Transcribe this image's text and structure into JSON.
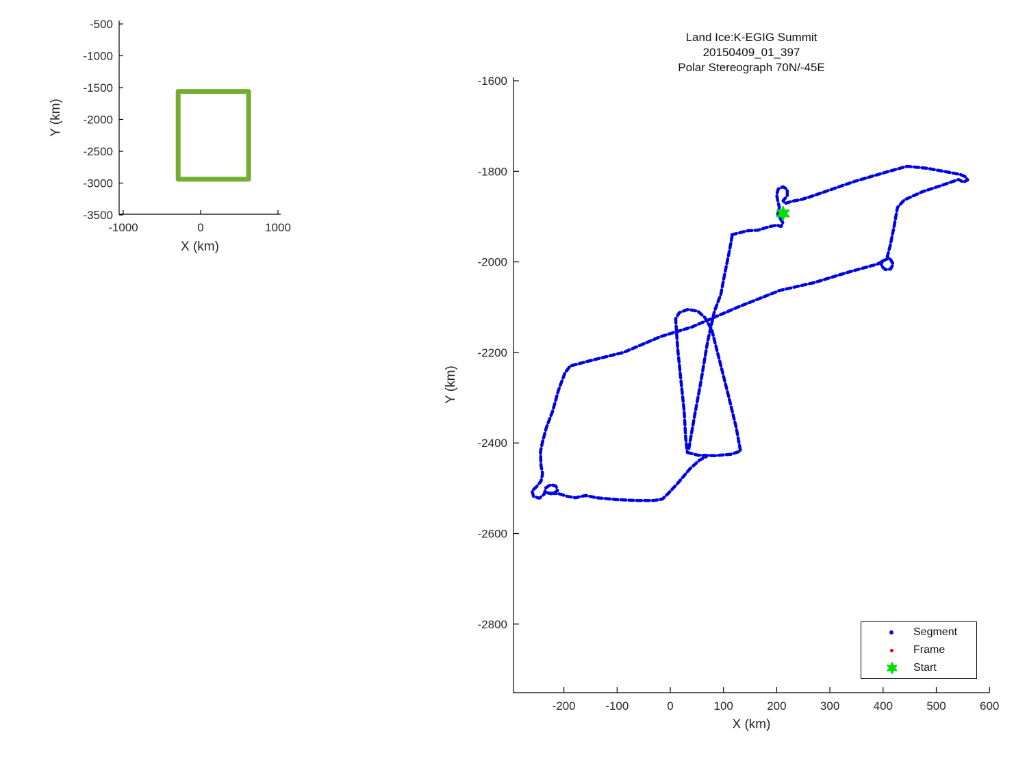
{
  "figure": {
    "colors": {
      "segment_blue": "#0000e6",
      "frame_red": "#dd0000",
      "start_green": "#00dd00",
      "overview_green": "#77AC30",
      "axis_text": "#262626",
      "axis_line": "#000000"
    }
  },
  "chart_data": [
    {
      "id": "flight_track",
      "type": "line",
      "title": {
        "line1": "Land Ice:K-EGIG Summit",
        "line2": "20150409_01_397",
        "line3": "Polar Stereograph 70N/-45E"
      },
      "xlabel": "X (km)",
      "ylabel": "Y (km)",
      "x_ticks": [
        -200,
        -100,
        0,
        100,
        200,
        300,
        400,
        500,
        600
      ],
      "y_ticks": [
        -1600,
        -1800,
        -2000,
        -2200,
        -2400,
        -2600,
        -2800
      ],
      "x_range": [
        -295,
        600
      ],
      "y_range": [
        -2952,
        -1592
      ],
      "grid": false,
      "legend": {
        "position": "lower right",
        "entries": [
          {
            "label": "Segment",
            "marker": "dot",
            "color": "#0000e6"
          },
          {
            "label": "Frame",
            "marker": "dot",
            "color": "#dd0000"
          },
          {
            "label": "Start",
            "marker": "star",
            "color": "#00dd00"
          }
        ]
      },
      "start_point": [
        212,
        -1893
      ],
      "series": [
        {
          "name": "segment-path",
          "color": "#0000e6",
          "style": "dashed",
          "stroke_width": 4.5,
          "points": [
            [
              116,
              -1940
            ],
            [
              129,
              -1936
            ],
            [
              146,
              -1931
            ],
            [
              165,
              -1930
            ],
            [
              178,
              -1925
            ],
            [
              191,
              -1921
            ],
            [
              201,
              -1919
            ],
            [
              208,
              -1922
            ],
            [
              212,
              -1914
            ],
            [
              207,
              -1905
            ],
            [
              202,
              -1895
            ],
            [
              205,
              -1880
            ],
            [
              202,
              -1865
            ],
            [
              200,
              -1852
            ],
            [
              203,
              -1839
            ],
            [
              212,
              -1834
            ],
            [
              220,
              -1840
            ],
            [
              220,
              -1854
            ],
            [
              212,
              -1865
            ],
            [
              216,
              -1871
            ],
            [
              229,
              -1866
            ],
            [
              244,
              -1863
            ],
            [
              261,
              -1857
            ],
            [
              283,
              -1848
            ],
            [
              347,
              -1822
            ],
            [
              411,
              -1800
            ],
            [
              445,
              -1789
            ],
            [
              481,
              -1793
            ],
            [
              519,
              -1801
            ],
            [
              545,
              -1807
            ],
            [
              555,
              -1812
            ],
            [
              559,
              -1819
            ],
            [
              551,
              -1824
            ],
            [
              542,
              -1818
            ],
            [
              513,
              -1830
            ],
            [
              474,
              -1845
            ],
            [
              440,
              -1863
            ],
            [
              427,
              -1880
            ],
            [
              421,
              -1920
            ],
            [
              413,
              -1966
            ],
            [
              408,
              -1988
            ],
            [
              414,
              -1995
            ],
            [
              419,
              -2005
            ],
            [
              414,
              -2016
            ],
            [
              404,
              -2017
            ],
            [
              396,
              -2008
            ],
            [
              399,
              -1998
            ],
            [
              408,
              -1993
            ],
            [
              389,
              -2005
            ],
            [
              334,
              -2023
            ],
            [
              270,
              -2046
            ],
            [
              206,
              -2063
            ],
            [
              129,
              -2099
            ],
            [
              40,
              -2144
            ],
            [
              -18,
              -2165
            ],
            [
              -88,
              -2200
            ],
            [
              -150,
              -2218
            ],
            [
              -188,
              -2230
            ],
            [
              -198,
              -2245
            ],
            [
              -210,
              -2283
            ],
            [
              -221,
              -2329
            ],
            [
              -233,
              -2366
            ],
            [
              -240,
              -2397
            ],
            [
              -244,
              -2419
            ],
            [
              -243,
              -2450
            ],
            [
              -240,
              -2468
            ],
            [
              -243,
              -2484
            ],
            [
              -251,
              -2496
            ],
            [
              -260,
              -2506
            ],
            [
              -257,
              -2518
            ],
            [
              -246,
              -2522
            ],
            [
              -237,
              -2513
            ],
            [
              -234,
              -2499
            ],
            [
              -225,
              -2492
            ],
            [
              -215,
              -2495
            ],
            [
              -212,
              -2505
            ],
            [
              -221,
              -2513
            ],
            [
              -231,
              -2510
            ],
            [
              -210,
              -2512
            ],
            [
              -193,
              -2518
            ],
            [
              -178,
              -2521
            ],
            [
              -159,
              -2516
            ],
            [
              -139,
              -2521
            ],
            [
              -101,
              -2525
            ],
            [
              -63,
              -2527
            ],
            [
              -31,
              -2527
            ],
            [
              -15,
              -2524
            ],
            [
              -5,
              -2513
            ],
            [
              14,
              -2489
            ],
            [
              37,
              -2457
            ],
            [
              55,
              -2438
            ],
            [
              68,
              -2430
            ]
          ]
        },
        {
          "name": "racetrack-loop",
          "color": "#0000e6",
          "style": "dashed",
          "stroke_width": 4.5,
          "points": [
            [
              32,
              -2421
            ],
            [
              52,
              -2427
            ],
            [
              84,
              -2428
            ],
            [
              114,
              -2425
            ],
            [
              132,
              -2418
            ],
            [
              124,
              -2366
            ],
            [
              109,
              -2294
            ],
            [
              93,
              -2220
            ],
            [
              78,
              -2150
            ],
            [
              65,
              -2123
            ],
            [
              52,
              -2109
            ],
            [
              33,
              -2105
            ],
            [
              17,
              -2112
            ],
            [
              10,
              -2126
            ],
            [
              14,
              -2193
            ],
            [
              20,
              -2261
            ],
            [
              26,
              -2329
            ],
            [
              29,
              -2389
            ],
            [
              32,
              -2421
            ]
          ]
        },
        {
          "name": "transit-line",
          "color": "#0000e6",
          "style": "dashed",
          "stroke_width": 4.5,
          "points": [
            [
              35,
              -2412
            ],
            [
              45,
              -2344
            ],
            [
              58,
              -2261
            ],
            [
              70,
              -2177
            ],
            [
              83,
              -2109
            ],
            [
              95,
              -2072
            ],
            [
              101,
              -2034
            ],
            [
              109,
              -1988
            ],
            [
              114,
              -1958
            ],
            [
              116,
              -1943
            ]
          ]
        }
      ]
    },
    {
      "id": "coverage_overview",
      "type": "line",
      "xlabel": "X (km)",
      "ylabel": "Y (km)",
      "x_ticks": [
        -1000,
        0,
        1000
      ],
      "y_ticks": [
        -500,
        -1000,
        -1500,
        -2000,
        -2500,
        -3000,
        -3500
      ],
      "x_range": [
        -1050,
        1040
      ],
      "y_range": [
        -3500,
        -450
      ],
      "grid": false,
      "series": [
        {
          "name": "coverage-box",
          "color": "#77AC30",
          "style": "solid",
          "stroke_width": 7,
          "points": [
            [
              -290,
              -1560
            ],
            [
              620,
              -1560
            ],
            [
              620,
              -2940
            ],
            [
              -290,
              -2940
            ],
            [
              -290,
              -1560
            ]
          ]
        }
      ]
    }
  ]
}
